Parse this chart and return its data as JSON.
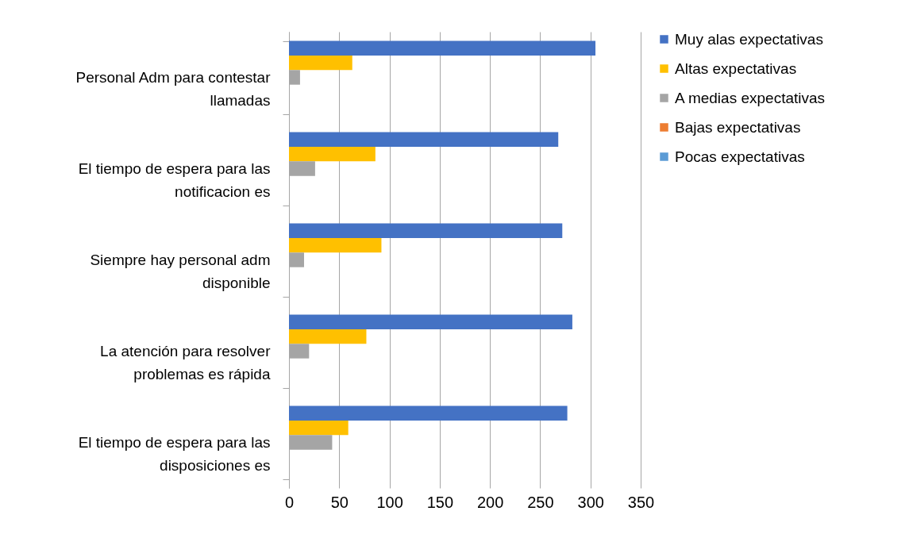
{
  "chart_data": {
    "type": "bar",
    "orientation": "horizontal",
    "categories": [
      "Personal Adm para contestar llamadas",
      "El tiempo de espera para las notificacion es",
      "Siempre hay personal adm disponible",
      "La atención para resolver problemas es rápida",
      "El tiempo de espera para las disposiciones es"
    ],
    "series": [
      {
        "name": "Muy alas expectativas",
        "color": "#4472c4",
        "values": [
          305,
          268,
          272,
          282,
          277
        ]
      },
      {
        "name": "Altas expectativas",
        "color": "#ffc000",
        "values": [
          63,
          86,
          92,
          77,
          59
        ]
      },
      {
        "name": "A medias expectativas",
        "color": "#a5a5a5",
        "values": [
          11,
          26,
          15,
          20,
          43
        ]
      },
      {
        "name": "Bajas expectativas",
        "color": "#ed7d31",
        "values": [
          0,
          0,
          0,
          0,
          0
        ]
      },
      {
        "name": "Pocas expectativas",
        "color": "#5b9bd5",
        "values": [
          0,
          0,
          0,
          0,
          0
        ]
      }
    ],
    "xlim": [
      0,
      350
    ],
    "xticks": [
      0,
      50,
      100,
      150,
      200,
      250,
      300,
      350
    ],
    "grid": "x",
    "legend": "right"
  }
}
